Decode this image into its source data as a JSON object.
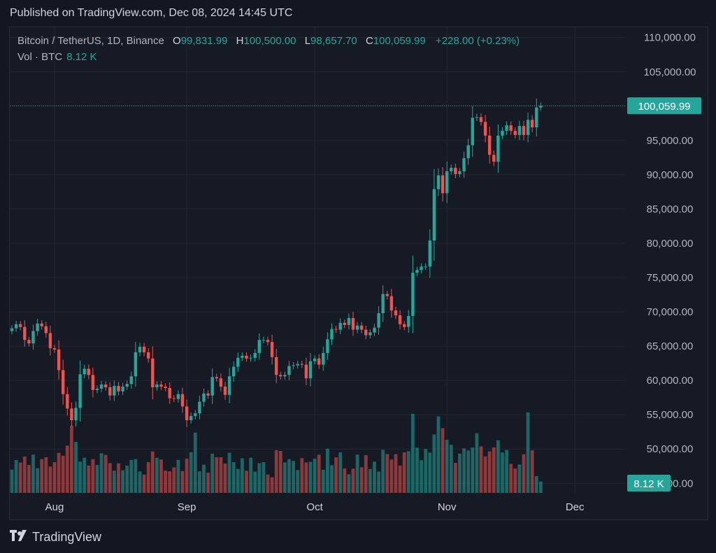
{
  "header": {
    "published": "Published on TradingView.com, Dec 08, 2024 14:45 UTC"
  },
  "legend": {
    "symbol": "Bitcoin / TetherUS, 1D, Binance",
    "o_label": "O",
    "o_value": "99,831.99",
    "h_label": "H",
    "h_value": "100,500.00",
    "l_label": "L",
    "l_value": "98,657.70",
    "c_label": "C",
    "c_value": "100,059.99",
    "change": "+228.00 (+0.23%)"
  },
  "volume_legend": {
    "label": "Vol · BTC",
    "value": "8.12 K"
  },
  "footer": {
    "brand": "TradingView",
    "logo_icon": "tradingview-logo-icon"
  },
  "colors": {
    "up": "#26a69a",
    "down": "#ef5350",
    "background": "#131722"
  },
  "chart_data": {
    "type": "candlestick",
    "symbol": "Bitcoin / TetherUS",
    "interval": "1D",
    "exchange": "Binance",
    "y_axis": {
      "ticks": [
        "110,000.00",
        "105,000.00",
        "100,000.00",
        "95,000.00",
        "90,000.00",
        "85,000.00",
        "80,000.00",
        "75,000.00",
        "70,000.00",
        "65,000.00",
        "60,000.00",
        "55,000.00",
        "50,000.00",
        "45,000.00"
      ],
      "range": [
        43500,
        111500
      ]
    },
    "x_axis": {
      "ticks": [
        {
          "label": "Aug",
          "date": "2024-08-01"
        },
        {
          "label": "Sep",
          "date": "2024-09-01"
        },
        {
          "label": "Oct",
          "date": "2024-10-01"
        },
        {
          "label": "Nov",
          "date": "2024-11-01"
        },
        {
          "label": "Dec",
          "date": "2024-12-01"
        }
      ],
      "start_date": "2024-07-22",
      "end_date": "2024-12-08"
    },
    "last_price": 100059.99,
    "last_price_label": "100,059.99",
    "last_volume_label": "8.12 K",
    "closes": [
      67600,
      68200,
      67800,
      65900,
      65400,
      67200,
      68300,
      67900,
      66900,
      64700,
      64500,
      61500,
      58000,
      55900,
      54200,
      56000,
      60900,
      61700,
      60800,
      58600,
      58800,
      59400,
      59000,
      57800,
      59200,
      58400,
      59100,
      59500,
      60600,
      64100,
      64900,
      64100,
      63200,
      59000,
      59400,
      59100,
      58900,
      57400,
      57300,
      58000,
      56200,
      54200,
      54800,
      55200,
      56900,
      58100,
      57800,
      60500,
      60300,
      59100,
      57900,
      60600,
      62000,
      63300,
      63600,
      63200,
      63300,
      64000,
      65900,
      65900,
      65600,
      63400,
      60800,
      60600,
      60800,
      62100,
      62200,
      62400,
      62300,
      60300,
      62800,
      63200,
      62300,
      64000,
      66000,
      67500,
      67400,
      68400,
      68100,
      69100,
      67400,
      68000,
      67400,
      66600,
      67000,
      67700,
      69800,
      72600,
      72300,
      70200,
      69500,
      68200,
      67800,
      69400,
      75700,
      76100,
      76600,
      76600,
      80400,
      87900,
      89900,
      87300,
      90500,
      91000,
      90100,
      90500,
      92400,
      94300,
      98300,
      98400,
      97700,
      95700,
      92900,
      91900,
      95700,
      96400,
      97200,
      96400,
      95800,
      97100,
      95800,
      98000,
      96900,
      99800,
      100060
    ],
    "volumes": [
      16500,
      23400,
      21500,
      25800,
      19800,
      27200,
      17500,
      24000,
      25300,
      18700,
      21800,
      28500,
      26400,
      33600,
      47700,
      36200,
      22200,
      25000,
      19400,
      24000,
      19800,
      28100,
      27000,
      21100,
      15800,
      21000,
      16000,
      19400,
      23400,
      24000,
      15200,
      13000,
      21800,
      29400,
      24900,
      23700,
      15800,
      15300,
      18100,
      23400,
      15500,
      24300,
      28900,
      42800,
      15300,
      20000,
      14400,
      27800,
      25300,
      25300,
      20800,
      28500,
      21800,
      17000,
      24600,
      15700,
      25000,
      15100,
      21100,
      21800,
      13000,
      11100,
      30300,
      29800,
      21600,
      24000,
      22700,
      16200,
      24700,
      21600,
      22100,
      24200,
      27100,
      16400,
      31400,
      19600,
      25200,
      28800,
      17300,
      13200,
      17200,
      27200,
      18200,
      26800,
      17000,
      22200,
      15100,
      30600,
      27600,
      23700,
      27500,
      19400,
      28800,
      29600,
      56200,
      32100,
      23200,
      31200,
      28600,
      41500,
      54300,
      46000,
      37700,
      34100,
      21300,
      27900,
      31600,
      30100,
      32200,
      42400,
      33000,
      25900,
      29500,
      32300,
      37400,
      28700,
      30500,
      20600,
      17300,
      20200,
      27500,
      57100,
      30200,
      11900,
      8120
    ]
  }
}
